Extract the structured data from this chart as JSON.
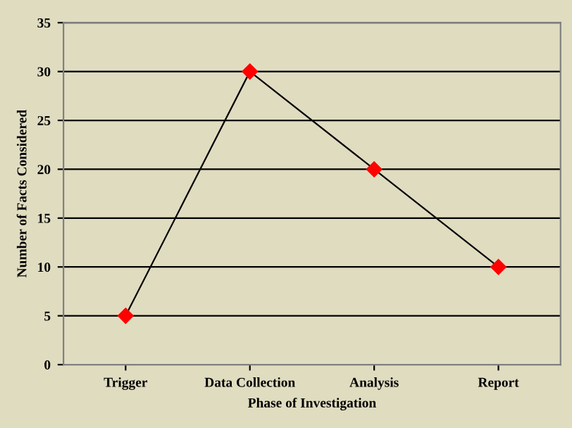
{
  "chart_data": {
    "type": "line",
    "xlabel": "Phase of Investigation",
    "ylabel": "Number of Facts Considered",
    "categories": [
      "Trigger",
      "Data Collection",
      "Analysis",
      "Report"
    ],
    "series": [
      {
        "color": "#ff0000",
        "values": [
          5,
          30,
          20,
          10
        ]
      }
    ],
    "ylim": [
      0,
      35
    ],
    "yticks": [
      0,
      5,
      10,
      15,
      20,
      25,
      30,
      35
    ],
    "grid": "y",
    "legend": false,
    "marker": "diamond",
    "line_style": "solid"
  }
}
